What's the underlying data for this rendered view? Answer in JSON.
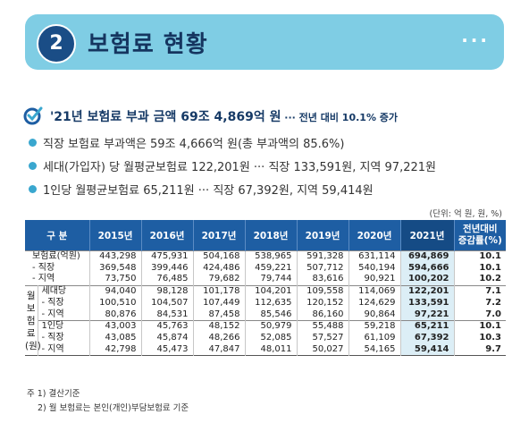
{
  "banner": {
    "number": "2",
    "title": "보험료 현황",
    "dots": "···"
  },
  "headline": {
    "main": "'21년 보험료 부과 금액 69조 4,869억 원",
    "sub": " ··· 전년 대비 10.1% 증가"
  },
  "bullets": [
    "직장 보험료 부과액은 59조 4,666억 원(총 부과액의 85.6%)",
    "세대(가입자) 당 월평균보험료 122,201원 ··· 직장 133,591원, 지역 97,221원",
    "1인당 월평균보험료 65,211원 ··· 직장 67,392원, 지역 59,414원"
  ],
  "unit": "(단위: 억 원, 원, %)",
  "table": {
    "headers": [
      "구 분",
      "2015년",
      "2016년",
      "2017년",
      "2018년",
      "2019년",
      "2020년",
      "2021년",
      "전년대비\n증감률(%)"
    ],
    "side_label": "월 보 험 료 (원)",
    "rows": [
      {
        "label": "보험료(억원)",
        "v": [
          "443,298",
          "475,931",
          "504,168",
          "538,965",
          "591,328",
          "631,114",
          "694,869",
          "10.1"
        ]
      },
      {
        "label": "- 직장",
        "v": [
          "369,548",
          "399,446",
          "424,486",
          "459,221",
          "507,712",
          "540,194",
          "594,666",
          "10.1"
        ]
      },
      {
        "label": "- 지역",
        "v": [
          "73,750",
          "76,485",
          "79,682",
          "79,744",
          "83,616",
          "90,921",
          "100,202",
          "10.2"
        ]
      },
      {
        "label": "세대당",
        "v": [
          "94,040",
          "98,128",
          "101,178",
          "104,201",
          "109,558",
          "114,069",
          "122,201",
          "7.1"
        ]
      },
      {
        "label": "- 직장",
        "v": [
          "100,510",
          "104,507",
          "107,449",
          "112,635",
          "120,152",
          "124,629",
          "133,591",
          "7.2"
        ]
      },
      {
        "label": "- 지역",
        "v": [
          "80,876",
          "84,531",
          "87,458",
          "85,546",
          "86,160",
          "90,864",
          "97,221",
          "7.0"
        ]
      },
      {
        "label": "1인당",
        "v": [
          "43,003",
          "45,763",
          "48,152",
          "50,979",
          "55,488",
          "59,218",
          "65,211",
          "10.1"
        ]
      },
      {
        "label": "- 직장",
        "v": [
          "43,085",
          "45,874",
          "48,266",
          "52,085",
          "57,527",
          "61,109",
          "67,392",
          "10.3"
        ]
      },
      {
        "label": "- 지역",
        "v": [
          "42,798",
          "45,473",
          "47,847",
          "48,011",
          "50,027",
          "54,165",
          "59,414",
          "9.7"
        ]
      }
    ]
  },
  "notes": [
    "주 1) 결산기준",
    "2) 월 보험료는 본인(개인)부담보험료 기준"
  ],
  "colors": {
    "banner": "#7fcde4",
    "header": "#1e5ea3",
    "highlight": "#dceef6",
    "bullet": "#3aa7cf"
  }
}
